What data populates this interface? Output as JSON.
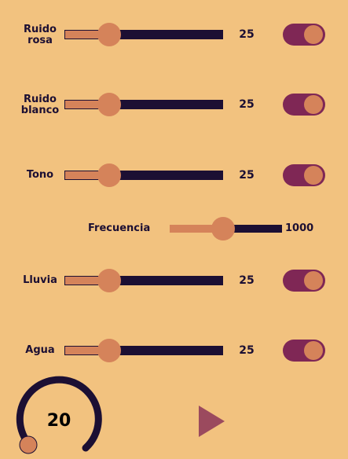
{
  "sounds": [
    {
      "label": "Ruido\nrosa",
      "value": "25",
      "level": 25,
      "enabled": true
    },
    {
      "label": "Ruido\nblanco",
      "value": "25",
      "level": 25,
      "enabled": true
    },
    {
      "label": "Tono",
      "value": "25",
      "level": 25,
      "enabled": true
    },
    {
      "label": "Lluvia",
      "value": "25",
      "level": 25,
      "enabled": true
    },
    {
      "label": "Agua",
      "value": "25",
      "level": 25,
      "enabled": true
    }
  ],
  "frequency": {
    "label": "Frecuencia",
    "value": "1000",
    "level_fraction": 0.48
  },
  "timer": {
    "value": "20",
    "level_fraction": 0.0
  },
  "play": {
    "icon": "play-icon"
  },
  "colors": {
    "background": "#f2c27f",
    "track": "#1c0f33",
    "accent": "#d5835a",
    "toggle_on": "#7f2755",
    "play": "#9b4a5e"
  }
}
